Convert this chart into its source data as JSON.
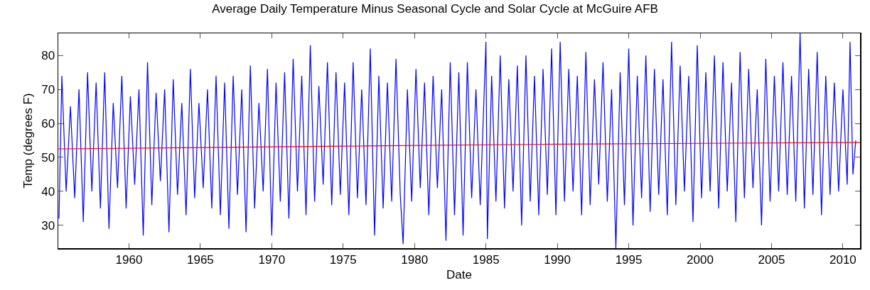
{
  "chart_data": {
    "type": "line",
    "title": "Average Daily Temperature Minus Seasonal Cycle and Solar Cycle at McGuire AFB",
    "xlabel": "Date",
    "ylabel": "Temp (degrees F)",
    "xlim": [
      1955.05,
      2011.2
    ],
    "xticks": [
      1960,
      1965,
      1970,
      1975,
      1980,
      1985,
      1990,
      1995,
      2000,
      2005,
      2010
    ],
    "ylim": [
      23.3,
      86.5
    ],
    "yticks": [
      30,
      40,
      50,
      60,
      70,
      80
    ],
    "grid": false,
    "line_style": "solid",
    "marker": "none",
    "series": [
      {
        "color": "#0000ff",
        "x": [
          1955.1,
          1955.3,
          1955.6,
          1955.9,
          1956.2,
          1956.5,
          1956.8,
          1957.1,
          1957.4,
          1957.7,
          1958.0,
          1958.3,
          1958.6,
          1958.9,
          1959.2,
          1959.5,
          1959.8,
          1960.1,
          1960.4,
          1960.7,
          1961.0,
          1961.3,
          1961.6,
          1961.9,
          1962.2,
          1962.5,
          1962.8,
          1963.1,
          1963.4,
          1963.7,
          1964.0,
          1964.3,
          1964.6,
          1964.9,
          1965.2,
          1965.5,
          1965.8,
          1966.1,
          1966.4,
          1966.7,
          1967.0,
          1967.3,
          1967.6,
          1967.9,
          1968.2,
          1968.5,
          1968.8,
          1969.1,
          1969.4,
          1969.7,
          1970.0,
          1970.3,
          1970.6,
          1970.9,
          1971.2,
          1971.5,
          1971.8,
          1972.1,
          1972.4,
          1972.7,
          1973.0,
          1973.3,
          1973.6,
          1973.9,
          1974.2,
          1974.5,
          1974.8,
          1975.1,
          1975.4,
          1975.7,
          1976.0,
          1976.3,
          1976.6,
          1976.9,
          1977.2,
          1977.5,
          1977.8,
          1978.1,
          1978.4,
          1978.7,
          1979.0,
          1979.2,
          1979.5,
          1979.8,
          1980.1,
          1980.4,
          1980.7,
          1981.0,
          1981.3,
          1981.6,
          1981.9,
          1982.2,
          1982.5,
          1982.8,
          1983.1,
          1983.4,
          1983.7,
          1984.0,
          1984.3,
          1984.6,
          1985.0,
          1985.1,
          1985.4,
          1985.7,
          1986.0,
          1986.3,
          1986.6,
          1986.9,
          1987.2,
          1987.5,
          1987.8,
          1988.1,
          1988.4,
          1988.7,
          1989.0,
          1989.3,
          1989.6,
          1989.9,
          1990.2,
          1990.5,
          1990.8,
          1991.1,
          1991.4,
          1991.7,
          1992.0,
          1992.3,
          1992.6,
          1992.9,
          1993.2,
          1993.5,
          1993.8,
          1994.1,
          1994.4,
          1994.7,
          1995.0,
          1995.3,
          1995.6,
          1995.9,
          1996.2,
          1996.5,
          1996.8,
          1997.1,
          1997.4,
          1997.7,
          1998.0,
          1998.3,
          1998.6,
          1998.9,
          1999.2,
          1999.5,
          1999.8,
          2000.1,
          2000.4,
          2000.7,
          2001.0,
          2001.3,
          2001.6,
          2001.9,
          2002.2,
          2002.5,
          2002.8,
          2003.1,
          2003.4,
          2003.7,
          2004.0,
          2004.3,
          2004.6,
          2004.9,
          2005.2,
          2005.5,
          2005.8,
          2006.1,
          2006.4,
          2006.7,
          2007.0,
          2007.3,
          2007.6,
          2007.9,
          2008.2,
          2008.5,
          2008.8,
          2009.1,
          2009.4,
          2009.7,
          2010.0,
          2010.3,
          2010.5,
          2010.7,
          2010.9
        ],
        "values": [
          32,
          74,
          40,
          65,
          38,
          70,
          31,
          75,
          40,
          72,
          35,
          75,
          29,
          66,
          41,
          74,
          35,
          68,
          42,
          70,
          27,
          78,
          36,
          69,
          43,
          70,
          28,
          73,
          39,
          66,
          33,
          76,
          38,
          66,
          41,
          70,
          35,
          74,
          33,
          72,
          29,
          74,
          39,
          70,
          28,
          77,
          35,
          66,
          40,
          76,
          27,
          72,
          37,
          75,
          32,
          79,
          40,
          74,
          33,
          83,
          37,
          71,
          42,
          78,
          36,
          75,
          39,
          72,
          33,
          78,
          38,
          70,
          36,
          82,
          27,
          74,
          35,
          72,
          37,
          79,
          39,
          24.5,
          70,
          37,
          76,
          41,
          72,
          33,
          74,
          41,
          70,
          25.5,
          78,
          33,
          75,
          27,
          78,
          38,
          70,
          36,
          84,
          26,
          74,
          37,
          80,
          35,
          73,
          40,
          77,
          30,
          80,
          37,
          74,
          33,
          76,
          39,
          82,
          33,
          84,
          37,
          76,
          40,
          74,
          33,
          81,
          36,
          73,
          42,
          78,
          37,
          70,
          23.3,
          75,
          36,
          82,
          30,
          74,
          38,
          80,
          34,
          76,
          39,
          73,
          33,
          84,
          36,
          77,
          40,
          74,
          31,
          83,
          38,
          75,
          40,
          80,
          35,
          78,
          40,
          72,
          31,
          81,
          38,
          76,
          41,
          70,
          30,
          79,
          37,
          74,
          40,
          78,
          39,
          74,
          37,
          86.5,
          35,
          76,
          39,
          81,
          33,
          74,
          39,
          72,
          40,
          70,
          42,
          84,
          45,
          55
        ]
      },
      {
        "type": "line",
        "color": "#ff0000",
        "x": [
          1955.05,
          1970,
          1990,
          2011.2
        ],
        "values": [
          52.5,
          53.1,
          53.9,
          54.4
        ]
      }
    ]
  }
}
